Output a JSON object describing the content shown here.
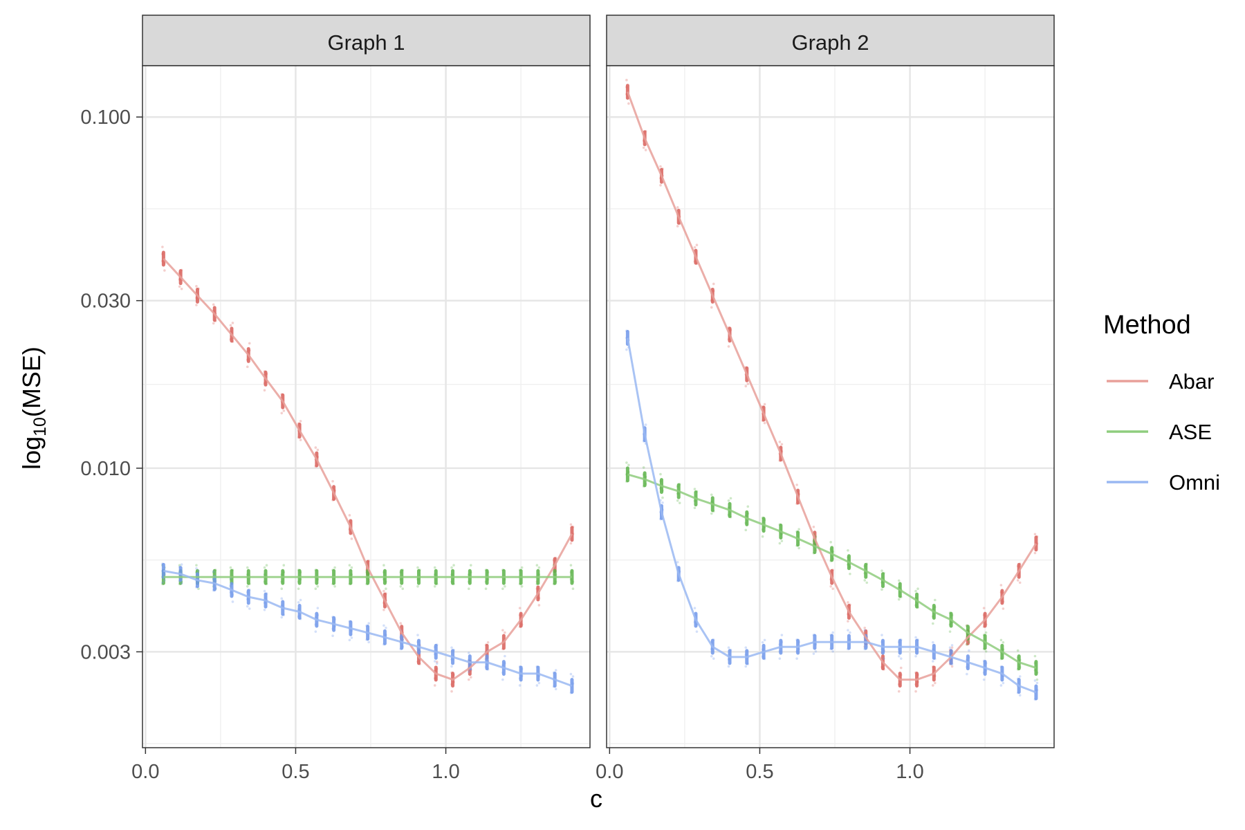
{
  "chart_data": {
    "type": "line",
    "xlabel": "c",
    "ylabel": "log10(MSE)",
    "ylabel_parts": {
      "prefix": "log",
      "subscript": "10",
      "suffix": "(MSE)"
    },
    "y_scale": "log10",
    "ylim": [
      0.0016,
      0.14
    ],
    "xlim": [
      -0.01,
      1.48
    ],
    "y_ticks": [
      0.003,
      0.01,
      0.03,
      0.1
    ],
    "y_tick_labels": [
      "0.003",
      "0.010",
      "0.030",
      "0.100"
    ],
    "x_ticks": [
      0,
      0.5,
      1.0
    ],
    "x_tick_labels": [
      "0.0",
      "0.5",
      "1.0"
    ],
    "grid": true,
    "legend": {
      "title": "Method",
      "placement": "right",
      "entries": [
        {
          "label": "Abar",
          "color": "#e8a09a"
        },
        {
          "label": "ASE",
          "color": "#8fcd7e"
        },
        {
          "label": "Omni",
          "color": "#9ab8f2"
        }
      ]
    },
    "panels": [
      {
        "title": "Graph 1",
        "x": [
          0.06,
          0.117,
          0.173,
          0.23,
          0.287,
          0.343,
          0.4,
          0.457,
          0.513,
          0.57,
          0.627,
          0.683,
          0.74,
          0.797,
          0.853,
          0.91,
          0.967,
          1.023,
          1.08,
          1.137,
          1.193,
          1.25,
          1.307,
          1.363,
          1.42
        ],
        "series": [
          {
            "name": "Abar",
            "color": "#e8a09a",
            "point_color": "#d9605a",
            "values": [
              0.0395,
              0.035,
              0.031,
              0.0275,
              0.024,
              0.021,
              0.018,
              0.0155,
              0.0128,
              0.0106,
              0.0085,
              0.0068,
              0.0052,
              0.0042,
              0.0034,
              0.0029,
              0.0026,
              0.0025,
              0.0027,
              0.003,
              0.0032,
              0.0037,
              0.0044,
              0.0053,
              0.0065
            ]
          },
          {
            "name": "ASE",
            "color": "#8fcd7e",
            "point_color": "#5cb34a",
            "values": [
              0.0049,
              0.0049,
              0.0049,
              0.0049,
              0.0049,
              0.0049,
              0.0049,
              0.0049,
              0.0049,
              0.0049,
              0.0049,
              0.0049,
              0.0049,
              0.0049,
              0.0049,
              0.0049,
              0.0049,
              0.0049,
              0.0049,
              0.0049,
              0.0049,
              0.0049,
              0.0049,
              0.0049,
              0.0049
            ]
          },
          {
            "name": "Omni",
            "color": "#9ab8f2",
            "point_color": "#6f97ea",
            "values": [
              0.0051,
              0.005,
              0.0048,
              0.0047,
              0.0045,
              0.0043,
              0.0042,
              0.004,
              0.0039,
              0.0037,
              0.0036,
              0.0035,
              0.0034,
              0.0033,
              0.0032,
              0.0031,
              0.003,
              0.0029,
              0.0028,
              0.0028,
              0.0027,
              0.0026,
              0.0026,
              0.0025,
              0.0024
            ]
          }
        ]
      },
      {
        "title": "Graph 2",
        "x": [
          0.06,
          0.117,
          0.173,
          0.23,
          0.287,
          0.343,
          0.4,
          0.457,
          0.513,
          0.57,
          0.627,
          0.683,
          0.74,
          0.797,
          0.853,
          0.91,
          0.967,
          1.023,
          1.08,
          1.137,
          1.193,
          1.25,
          1.307,
          1.363,
          1.42
        ],
        "series": [
          {
            "name": "Abar",
            "color": "#e8a09a",
            "point_color": "#d9605a",
            "values": [
              0.118,
              0.087,
              0.068,
              0.052,
              0.04,
              0.031,
              0.024,
              0.0185,
              0.0143,
              0.011,
              0.0083,
              0.0063,
              0.0049,
              0.0039,
              0.0033,
              0.0028,
              0.0025,
              0.0025,
              0.0026,
              0.0029,
              0.0033,
              0.0037,
              0.0043,
              0.0051,
              0.0061
            ]
          },
          {
            "name": "ASE",
            "color": "#8fcd7e",
            "point_color": "#5cb34a",
            "values": [
              0.0096,
              0.0093,
              0.0089,
              0.0086,
              0.0082,
              0.0079,
              0.0076,
              0.0072,
              0.0069,
              0.0066,
              0.0063,
              0.006,
              0.0057,
              0.0054,
              0.0051,
              0.0048,
              0.0045,
              0.0042,
              0.0039,
              0.0037,
              0.0034,
              0.0032,
              0.003,
              0.0028,
              0.0027
            ]
          },
          {
            "name": "Omni",
            "color": "#9ab8f2",
            "point_color": "#6f97ea",
            "values": [
              0.0235,
              0.0125,
              0.0075,
              0.005,
              0.0037,
              0.0031,
              0.0029,
              0.0029,
              0.003,
              0.0031,
              0.0031,
              0.0032,
              0.0032,
              0.0032,
              0.0032,
              0.0031,
              0.0031,
              0.0031,
              0.003,
              0.0029,
              0.0028,
              0.0027,
              0.0026,
              0.0024,
              0.0023
            ]
          }
        ]
      }
    ]
  }
}
